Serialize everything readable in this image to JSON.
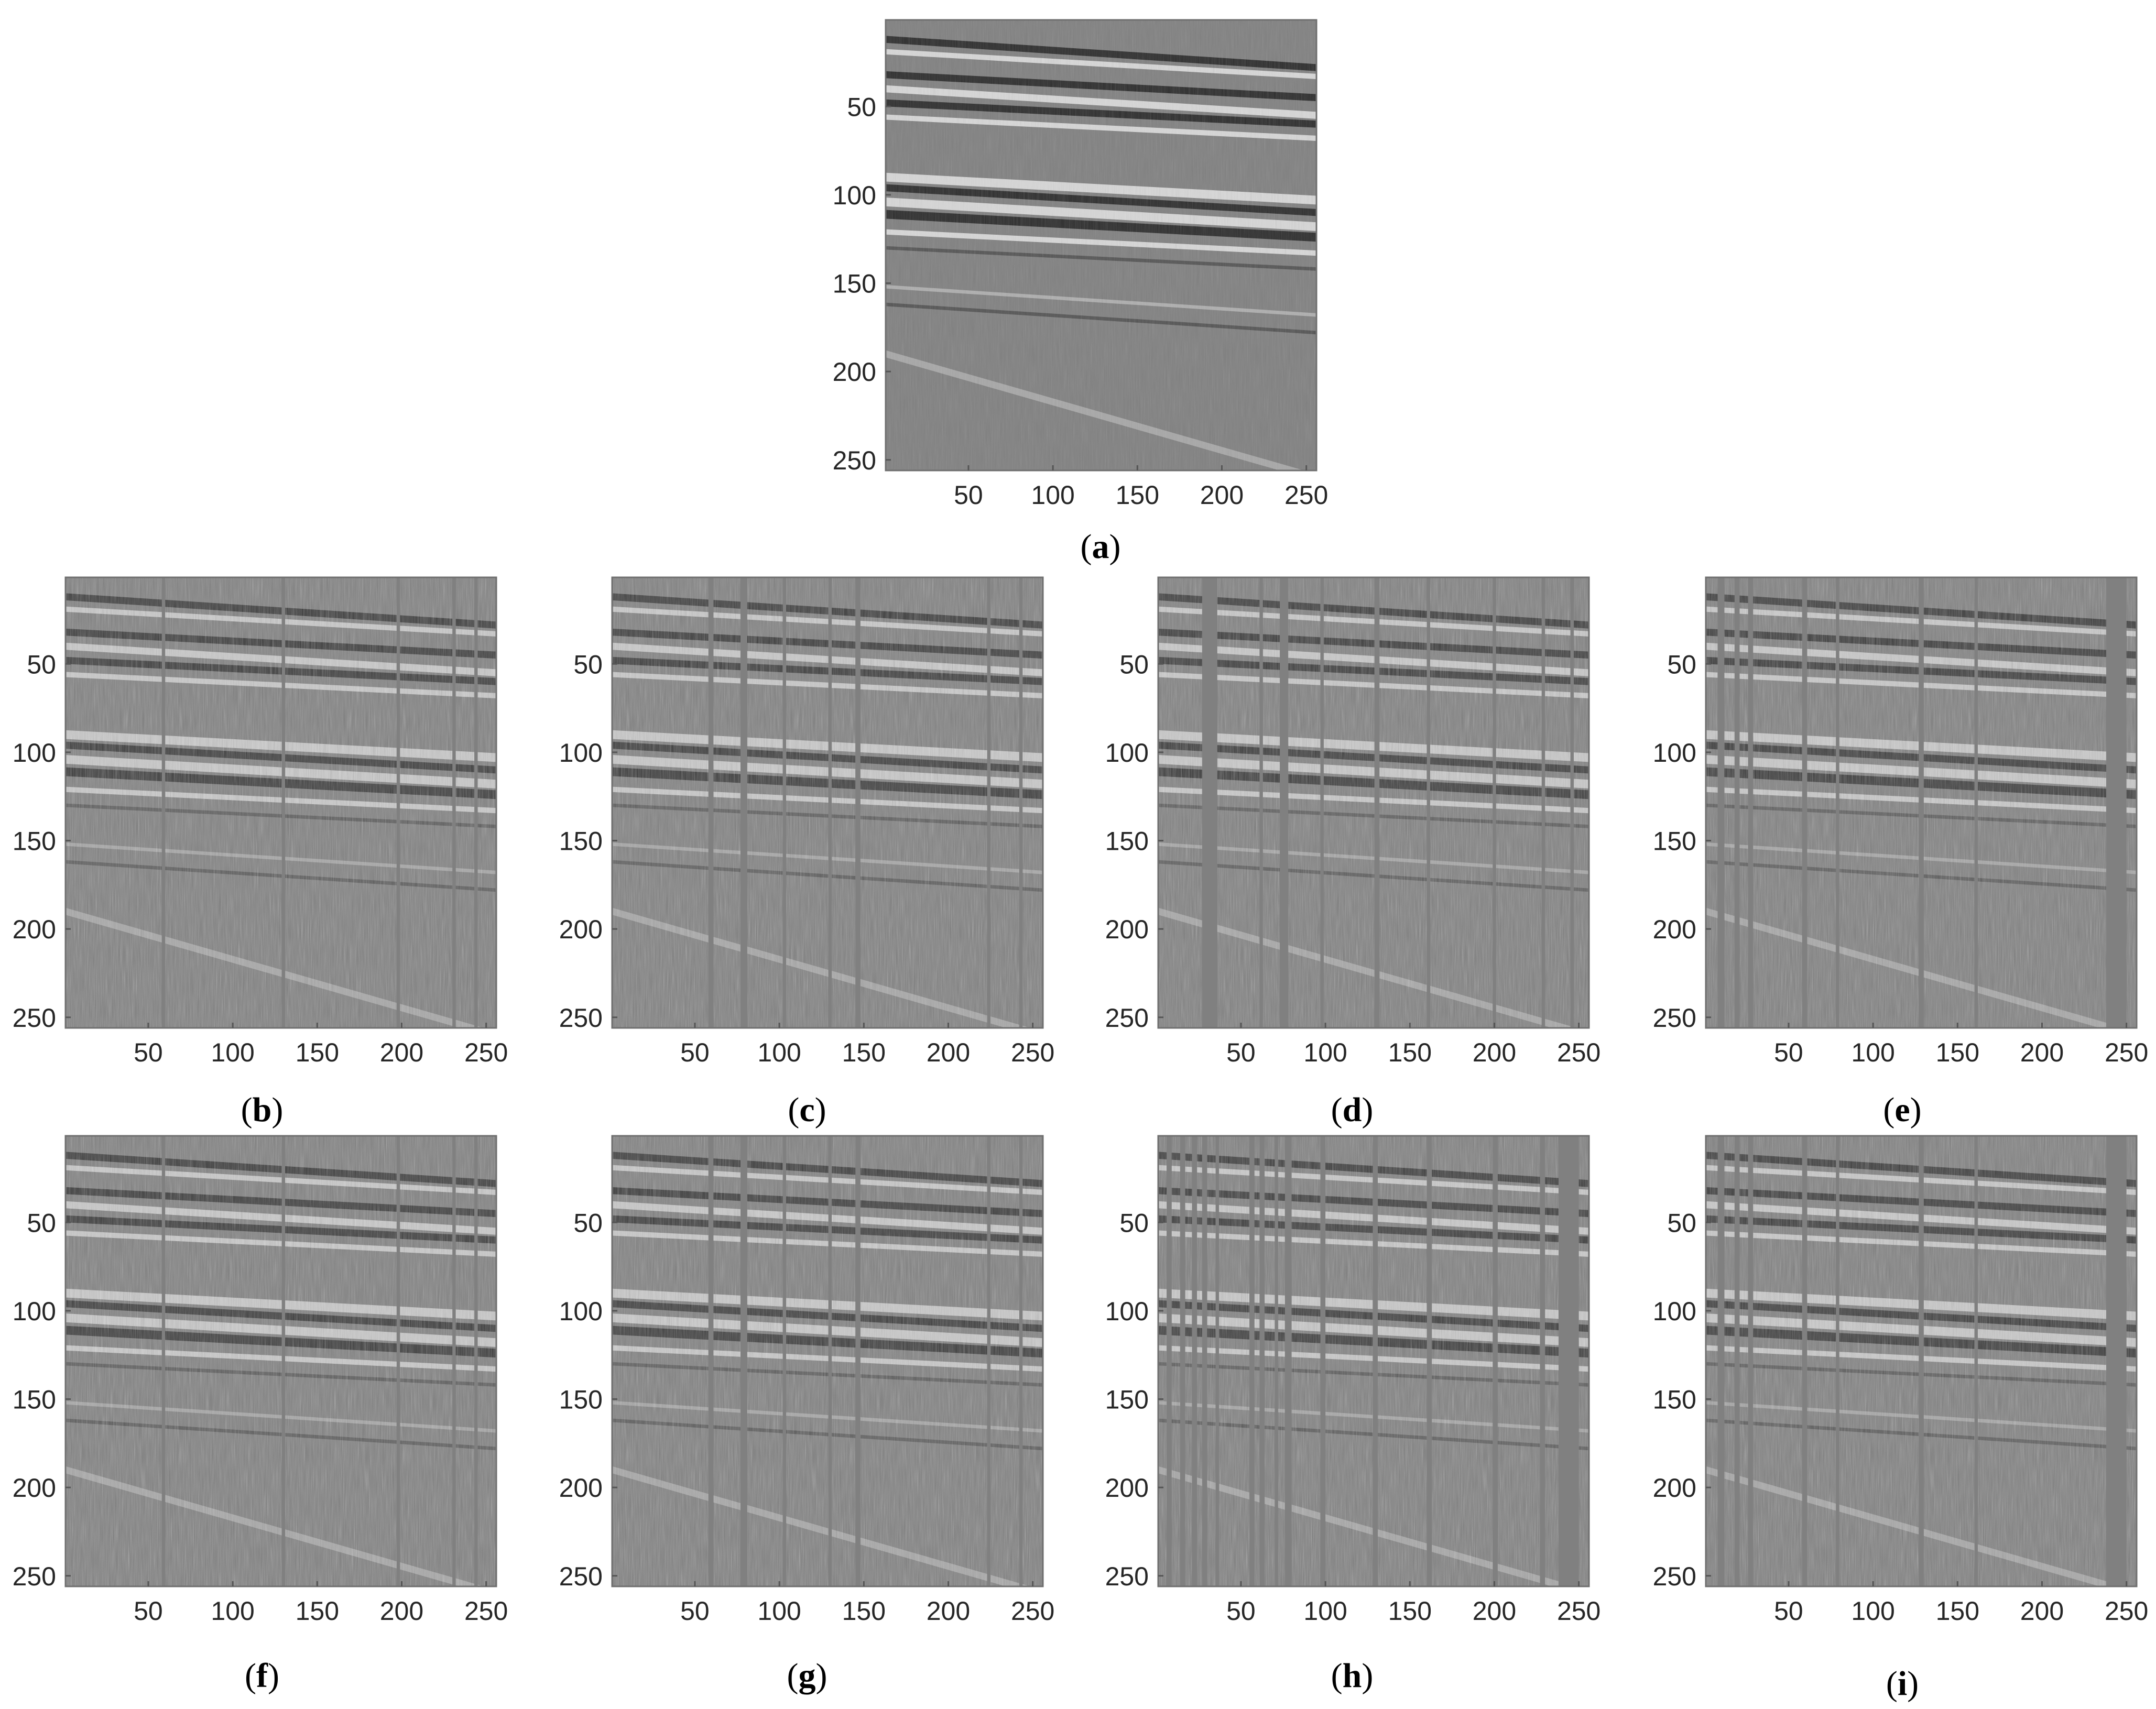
{
  "chart_data": [
    {
      "type": "heatmap",
      "panel": "a",
      "caption_letter": "a",
      "title": "",
      "xlabel": "",
      "ylabel": "",
      "xlim": [
        1,
        256
      ],
      "ylim": [
        1,
        256
      ],
      "x_ticks": [
        50,
        100,
        150,
        200,
        250
      ],
      "y_ticks": [
        50,
        100,
        150,
        200,
        250
      ],
      "y_direction": "down",
      "colormap": "gray",
      "trace_gaps": [],
      "grid": false
    },
    {
      "type": "heatmap",
      "panel": "b",
      "caption_letter": "b",
      "title": "",
      "xlabel": "",
      "ylabel": "",
      "xlim": [
        1,
        256
      ],
      "ylim": [
        1,
        256
      ],
      "x_ticks": [
        50,
        100,
        150,
        200,
        250
      ],
      "y_ticks": [
        50,
        100,
        150,
        200,
        250
      ],
      "y_direction": "down",
      "colormap": "gray",
      "trace_gaps": [
        [
          58,
          60
        ],
        [
          129,
          131
        ],
        [
          197,
          199
        ],
        [
          230,
          232
        ],
        [
          243,
          245
        ]
      ],
      "grid": false
    },
    {
      "type": "heatmap",
      "panel": "c",
      "caption_letter": "c",
      "title": "",
      "xlabel": "",
      "ylabel": "",
      "xlim": [
        1,
        256
      ],
      "ylim": [
        1,
        256
      ],
      "x_ticks": [
        50,
        100,
        150,
        200,
        250
      ],
      "y_ticks": [
        50,
        100,
        150,
        200,
        250
      ],
      "y_direction": "down",
      "colormap": "gray",
      "trace_gaps": [
        [
          58,
          61
        ],
        [
          77,
          81
        ],
        [
          102,
          104
        ],
        [
          129,
          131
        ],
        [
          145,
          148
        ],
        [
          223,
          225
        ],
        [
          242,
          244
        ]
      ],
      "grid": false
    },
    {
      "type": "heatmap",
      "panel": "d",
      "caption_letter": "d",
      "title": "",
      "xlabel": "",
      "ylabel": "",
      "xlim": [
        1,
        256
      ],
      "ylim": [
        1,
        256
      ],
      "x_ticks": [
        50,
        100,
        150,
        200,
        250
      ],
      "y_ticks": [
        50,
        100,
        150,
        200,
        250
      ],
      "y_direction": "down",
      "colormap": "gray",
      "trace_gaps": [
        [
          27,
          36
        ],
        [
          61,
          63
        ],
        [
          73,
          78
        ],
        [
          97,
          99
        ],
        [
          129,
          132
        ],
        [
          160,
          162
        ],
        [
          199,
          201
        ],
        [
          228,
          230
        ],
        [
          245,
          247
        ]
      ],
      "grid": false
    },
    {
      "type": "heatmap",
      "panel": "e",
      "caption_letter": "e",
      "title": "",
      "xlabel": "",
      "ylabel": "",
      "xlim": [
        1,
        256
      ],
      "ylim": [
        1,
        256
      ],
      "x_ticks": [
        50,
        100,
        150,
        200,
        250
      ],
      "y_ticks": [
        50,
        100,
        150,
        200,
        250
      ],
      "y_direction": "down",
      "colormap": "gray",
      "trace_gaps": [
        [
          8,
          12
        ],
        [
          18,
          21
        ],
        [
          26,
          29
        ],
        [
          58,
          61
        ],
        [
          78,
          80
        ],
        [
          127,
          130
        ],
        [
          160,
          162
        ],
        [
          238,
          250
        ]
      ],
      "grid": false
    },
    {
      "type": "heatmap",
      "panel": "f",
      "caption_letter": "f",
      "title": "",
      "xlabel": "",
      "ylabel": "",
      "xlim": [
        1,
        256
      ],
      "ylim": [
        1,
        256
      ],
      "x_ticks": [
        50,
        100,
        150,
        200,
        250
      ],
      "y_ticks": [
        50,
        100,
        150,
        200,
        250
      ],
      "y_direction": "down",
      "colormap": "gray",
      "trace_gaps": [
        [
          58,
          60
        ],
        [
          129,
          131
        ],
        [
          197,
          199
        ],
        [
          230,
          232
        ],
        [
          243,
          245
        ]
      ],
      "grid": false
    },
    {
      "type": "heatmap",
      "panel": "g",
      "caption_letter": "g",
      "title": "",
      "xlabel": "",
      "ylabel": "",
      "xlim": [
        1,
        256
      ],
      "ylim": [
        1,
        256
      ],
      "x_ticks": [
        50,
        100,
        150,
        200,
        250
      ],
      "y_ticks": [
        50,
        100,
        150,
        200,
        250
      ],
      "y_direction": "down",
      "colormap": "gray",
      "trace_gaps": [
        [
          58,
          61
        ],
        [
          77,
          81
        ],
        [
          102,
          104
        ],
        [
          129,
          131
        ],
        [
          145,
          148
        ],
        [
          223,
          225
        ],
        [
          242,
          244
        ]
      ],
      "grid": false
    },
    {
      "type": "heatmap",
      "panel": "h",
      "caption_letter": "h",
      "title": "",
      "xlabel": "",
      "ylabel": "",
      "xlim": [
        1,
        256
      ],
      "ylim": [
        1,
        256
      ],
      "x_ticks": [
        50,
        100,
        150,
        200,
        250
      ],
      "y_ticks": [
        50,
        100,
        150,
        200,
        250
      ],
      "y_direction": "down",
      "colormap": "gray",
      "trace_gaps": [
        [
          6,
          9
        ],
        [
          14,
          17
        ],
        [
          21,
          24
        ],
        [
          27,
          30
        ],
        [
          35,
          37
        ],
        [
          55,
          58
        ],
        [
          61,
          64
        ],
        [
          70,
          72
        ],
        [
          76,
          80
        ],
        [
          97,
          100
        ],
        [
          128,
          131
        ],
        [
          160,
          163
        ],
        [
          199,
          202
        ],
        [
          227,
          230
        ],
        [
          238,
          250
        ]
      ],
      "grid": false
    },
    {
      "type": "heatmap",
      "panel": "i",
      "caption_letter": "i",
      "title": "",
      "xlabel": "",
      "ylabel": "",
      "xlim": [
        1,
        256
      ],
      "ylim": [
        1,
        256
      ],
      "x_ticks": [
        50,
        100,
        150,
        200,
        250
      ],
      "y_ticks": [
        50,
        100,
        150,
        200,
        250
      ],
      "y_direction": "down",
      "colormap": "gray",
      "trace_gaps": [
        [
          8,
          12
        ],
        [
          18,
          21
        ],
        [
          26,
          29
        ],
        [
          58,
          61
        ],
        [
          78,
          80
        ],
        [
          127,
          130
        ],
        [
          160,
          162
        ],
        [
          238,
          250
        ]
      ],
      "grid": false
    }
  ],
  "captions": [
    {
      "open": "(",
      "letter": "a",
      "close": ")"
    },
    {
      "open": "(",
      "letter": "b",
      "close": ")"
    },
    {
      "open": "(",
      "letter": "c",
      "close": ")"
    },
    {
      "open": "(",
      "letter": "d",
      "close": ")"
    },
    {
      "open": "(",
      "letter": "e",
      "close": ")"
    },
    {
      "open": "(",
      "letter": "f",
      "close": ")"
    },
    {
      "open": "(",
      "letter": "g",
      "close": ")"
    },
    {
      "open": "(",
      "letter": "h",
      "close": ")"
    },
    {
      "open": "(",
      "letter": "i",
      "close": ")"
    }
  ],
  "colors": {
    "background_gray": "#808080",
    "frame": "#6f6f6f",
    "tick_text": "#262626"
  }
}
